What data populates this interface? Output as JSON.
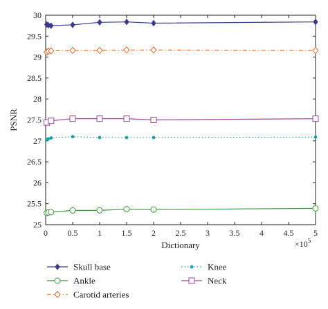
{
  "chart_data": {
    "type": "line",
    "xlabel": "Dictionary",
    "ylabel": "PSNR",
    "x_multiplier": "×10",
    "x_multiplier_exp": "5",
    "xlim": [
      0,
      5
    ],
    "ylim": [
      25,
      30
    ],
    "xticks": [
      "0",
      "0.5",
      "1",
      "1.5",
      "2",
      "2.5",
      "3",
      "3.5",
      "4",
      "4.5",
      "5"
    ],
    "yticks": [
      "25",
      "25.5",
      "26",
      "26.5",
      "27",
      "27.5",
      "28",
      "28.5",
      "29",
      "29.5",
      "30"
    ],
    "grid": false,
    "legend_position": "bottom",
    "series": [
      {
        "name": "Skull base",
        "color": "#3b3b8f",
        "marker": "diamond-filled",
        "line": "solid",
        "x": [
          0.02,
          0.05,
          0.1,
          0.5,
          1,
          1.5,
          2,
          5
        ],
        "y": [
          29.78,
          29.76,
          29.75,
          29.77,
          29.83,
          29.84,
          29.81,
          29.84
        ]
      },
      {
        "name": "Ankle",
        "color": "#3a9a3a",
        "marker": "circle-open",
        "line": "solid",
        "x": [
          0.02,
          0.05,
          0.1,
          0.5,
          1,
          1.5,
          2,
          5
        ],
        "y": [
          25.28,
          25.29,
          25.3,
          25.34,
          25.34,
          25.37,
          25.36,
          25.39
        ]
      },
      {
        "name": "Carotid arteries",
        "color": "#e06a2c",
        "marker": "diamond-open",
        "line": "dashdot",
        "x": [
          0.02,
          0.05,
          0.1,
          0.5,
          1,
          1.5,
          2,
          5
        ],
        "y": [
          29.12,
          29.14,
          29.15,
          29.16,
          29.16,
          29.17,
          29.17,
          29.16
        ]
      },
      {
        "name": "Knee",
        "color": "#1aa3a3",
        "marker": "dot-filled",
        "line": "dotted",
        "x": [
          0.02,
          0.05,
          0.1,
          0.5,
          1,
          1.5,
          2,
          5
        ],
        "y": [
          27.03,
          27.05,
          27.07,
          27.1,
          27.08,
          27.08,
          27.08,
          27.09
        ]
      },
      {
        "name": "Neck",
        "color": "#a040a0",
        "marker": "square-open",
        "line": "solid",
        "x": [
          0.02,
          0.1,
          0.5,
          1,
          1.5,
          2,
          5
        ],
        "y": [
          27.44,
          27.48,
          27.53,
          27.53,
          27.53,
          27.5,
          27.53
        ]
      }
    ]
  }
}
